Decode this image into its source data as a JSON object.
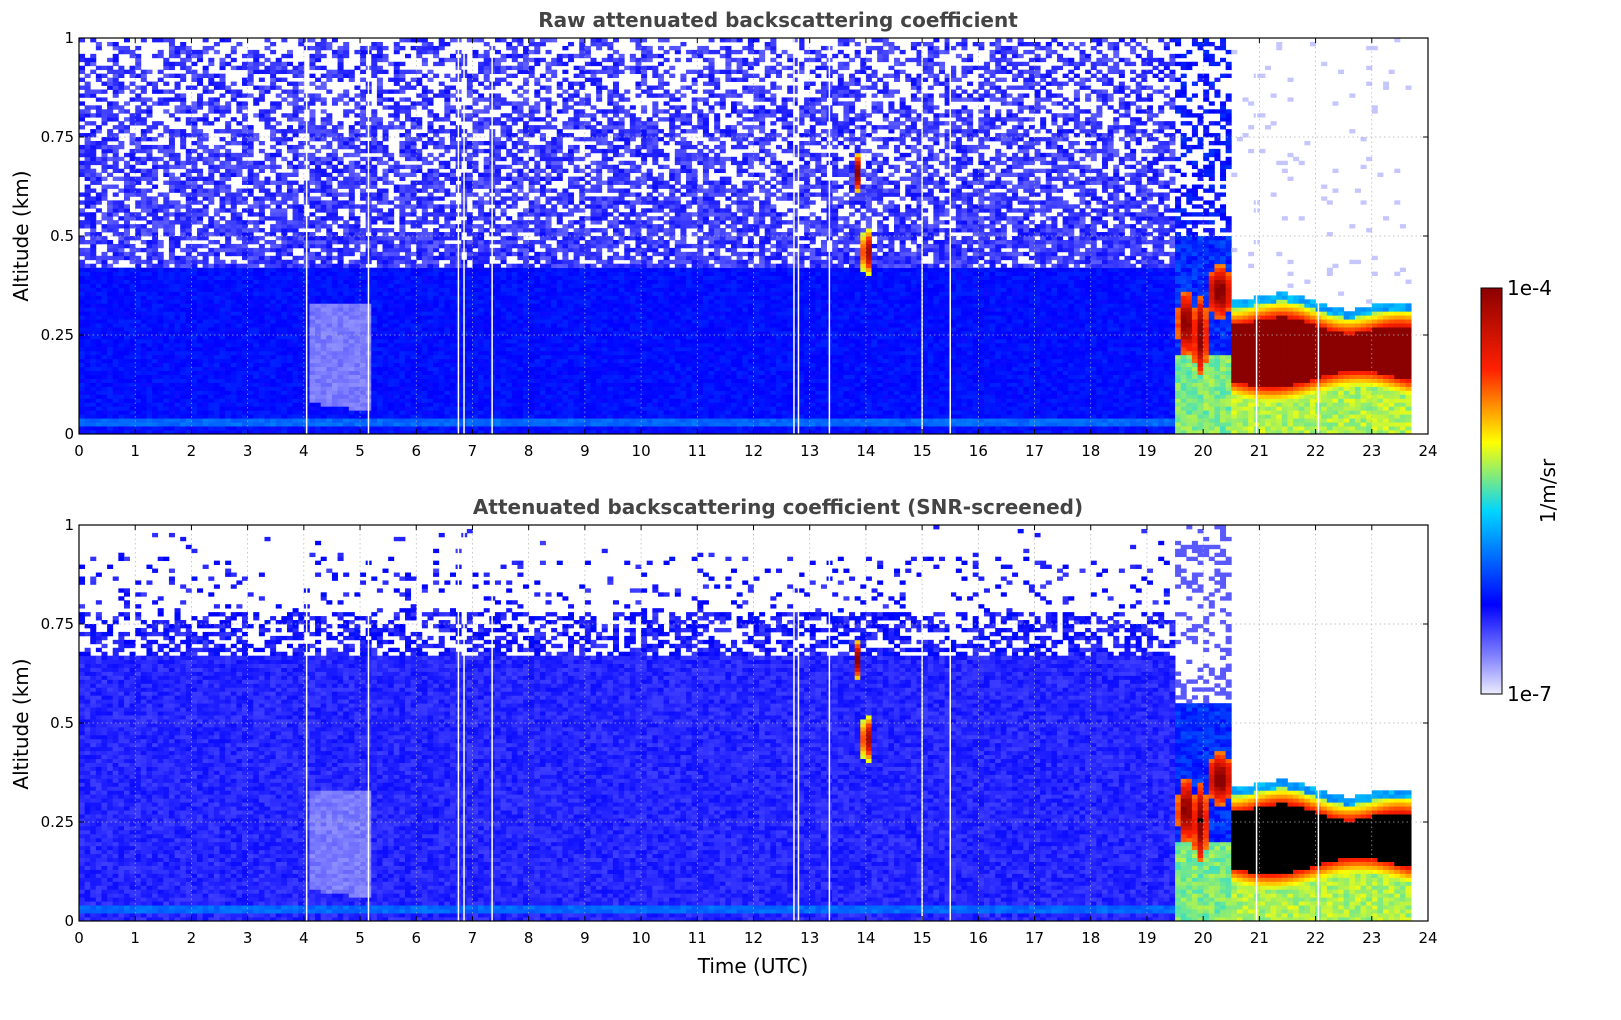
{
  "chart_data": [
    {
      "type": "heatmap",
      "title": "Raw attenuated backscattering coefficient",
      "xlabel": "",
      "ylabel": "Altitude (km)",
      "xlim": [
        0,
        24
      ],
      "ylim": [
        0,
        1
      ],
      "xticks": [
        "0",
        "1",
        "2",
        "3",
        "4",
        "5",
        "6",
        "7",
        "8",
        "9",
        "10",
        "11",
        "12",
        "13",
        "14",
        "15",
        "16",
        "17",
        "18",
        "19",
        "20",
        "21",
        "22",
        "23",
        "24"
      ],
      "yticks": [
        "0",
        "0.25",
        "0.5",
        "0.75",
        "1"
      ],
      "grid": true,
      "colorscale": "jet (log)",
      "noise_top_altitude_km": 1.0,
      "layers": [
        {
          "feature": "boundary layer aerosol",
          "time_start": 0,
          "time_end": 19.5,
          "altitude_top_km": 0.42,
          "log10_value": -6.3
        },
        {
          "feature": "near-surface layer",
          "time_start": 0,
          "time_end": 24,
          "altitude_km": 0.035,
          "log10_value": -6.1
        },
        {
          "feature": "elevated plume",
          "time_start": 4.1,
          "time_end": 5.2,
          "altitude_top_km": 0.35,
          "log10_value": -6.7
        },
        {
          "feature": "cloud",
          "time": 13.85,
          "altitude_km": 0.66,
          "log10_value": -4.2
        },
        {
          "feature": "cloud",
          "time": 14.0,
          "altitude_km": 0.46,
          "log10_value": -4.3
        },
        {
          "feature": "fog onset",
          "time_start": 19.6,
          "time_end": 20.5,
          "altitude_top_km": 0.37,
          "log10_value": -4.2
        },
        {
          "feature": "fog/low cloud layer",
          "time_start": 20.5,
          "time_end": 23.7,
          "altitude_base_km": 0.1,
          "altitude_top_km": 0.32,
          "log10_value": -4.0
        }
      ],
      "signal_gaps_utc": [
        4.05,
        5.15,
        6.75,
        6.85,
        7.35,
        12.72,
        12.8,
        13.35,
        15.0,
        15.5,
        20.95,
        22.05
      ]
    },
    {
      "type": "heatmap",
      "title": "Attenuated backscattering coefficient (SNR-screened)",
      "xlabel": "Time (UTC)",
      "ylabel": "Altitude (km)",
      "xlim": [
        0,
        24
      ],
      "ylim": [
        0,
        1
      ],
      "xticks": [
        "0",
        "1",
        "2",
        "3",
        "4",
        "5",
        "6",
        "7",
        "8",
        "9",
        "10",
        "11",
        "12",
        "13",
        "14",
        "15",
        "16",
        "17",
        "18",
        "19",
        "20",
        "21",
        "22",
        "23",
        "24"
      ],
      "yticks": [
        "0",
        "0.25",
        "0.5",
        "0.75",
        "1"
      ],
      "grid": true,
      "colorscale": "jet (log)",
      "screened_top_altitude_km": 0.67,
      "layers": [
        {
          "feature": "boundary layer aerosol",
          "time_start": 0,
          "time_end": 19.5,
          "altitude_top_km": 0.67,
          "log10_value": -6.4
        },
        {
          "feature": "elevated plume",
          "time_start": 4.1,
          "time_end": 5.2,
          "altitude_top_km": 0.33,
          "log10_value": -6.7
        },
        {
          "feature": "cloud",
          "time": 13.85,
          "altitude_km": 0.66,
          "log10_value": -4.2
        },
        {
          "feature": "cloud",
          "time": 14.0,
          "altitude_km": 0.46,
          "log10_value": -4.3
        },
        {
          "feature": "fog onset",
          "time_start": 19.6,
          "time_end": 20.5,
          "altitude_top_km": 0.4,
          "log10_value": -4.0
        },
        {
          "feature": "fog/low cloud layer (saturated)",
          "time_start": 20.5,
          "time_end": 23.7,
          "altitude_base_km": 0.09,
          "altitude_top_km": 0.31,
          "log10_value": -3.9
        }
      ],
      "signal_gaps_utc": [
        4.05,
        5.15,
        6.75,
        6.85,
        7.35,
        12.72,
        12.8,
        13.35,
        15.0,
        15.5,
        20.95,
        22.05
      ]
    }
  ],
  "colorbar": {
    "label": "1/m/sr",
    "max_label": "1e-4",
    "min_label": "1e-7",
    "scale": "log",
    "range": [
      1e-07,
      0.0001
    ],
    "colors": [
      "#ececff",
      "#0000ff",
      "#00e5ff",
      "#ffff00",
      "#ff2000",
      "#8b0000"
    ]
  }
}
